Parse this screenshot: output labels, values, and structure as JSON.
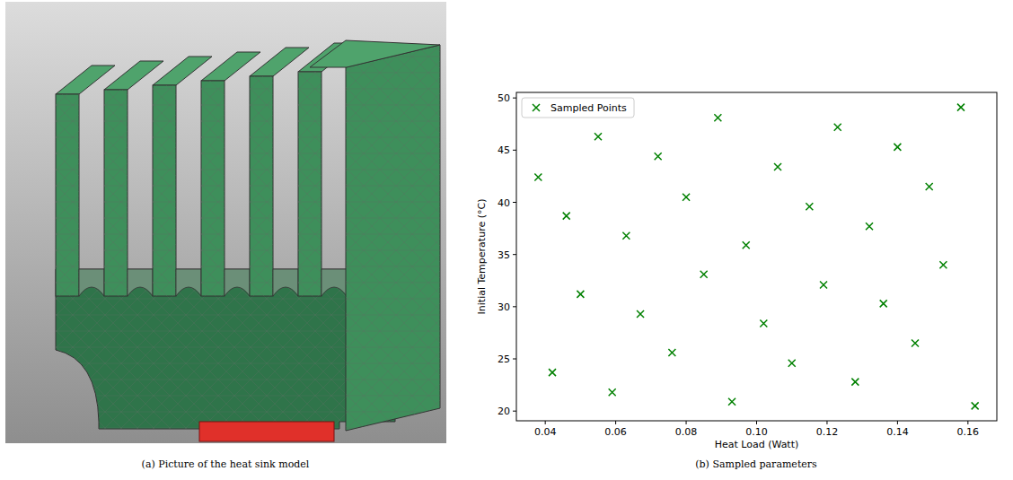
{
  "chart_data": {
    "type": "scatter",
    "x_label": "Heat Load (Watt)",
    "y_label": "Initial Temperature (°C)",
    "series": [
      {
        "name": "Sampled Points",
        "color": "#008000",
        "marker": "x",
        "x": [
          0.038,
          0.042,
          0.046,
          0.05,
          0.055,
          0.059,
          0.063,
          0.067,
          0.072,
          0.076,
          0.08,
          0.085,
          0.089,
          0.093,
          0.097,
          0.102,
          0.106,
          0.11,
          0.115,
          0.119,
          0.123,
          0.128,
          0.132,
          0.136,
          0.14,
          0.145,
          0.149,
          0.153,
          0.158,
          0.162
        ],
        "values": [
          42.4,
          23.7,
          38.7,
          31.2,
          46.3,
          21.8,
          36.8,
          29.3,
          44.4,
          25.6,
          40.5,
          33.1,
          48.1,
          20.9,
          35.9,
          28.4,
          43.4,
          24.6,
          39.6,
          32.1,
          47.2,
          22.8,
          37.7,
          30.3,
          45.3,
          26.5,
          41.5,
          34.0,
          49.1,
          20.5
        ]
      }
    ],
    "xlim": [
      0.0318,
      0.1682
    ],
    "xticks": [
      0.04,
      0.06,
      0.08,
      {
        "value": 0.1,
        "label": "0.10"
      },
      0.12,
      0.14,
      0.16
    ],
    "ylim": [
      19.07,
      50.53
    ],
    "yticks": [
      20,
      25,
      30,
      35,
      40,
      45,
      50
    ],
    "legend": "upper left",
    "grid": false
  },
  "captions": [
    "(a) Picture of the heat sink model",
    "(b) Sampled parameters"
  ]
}
